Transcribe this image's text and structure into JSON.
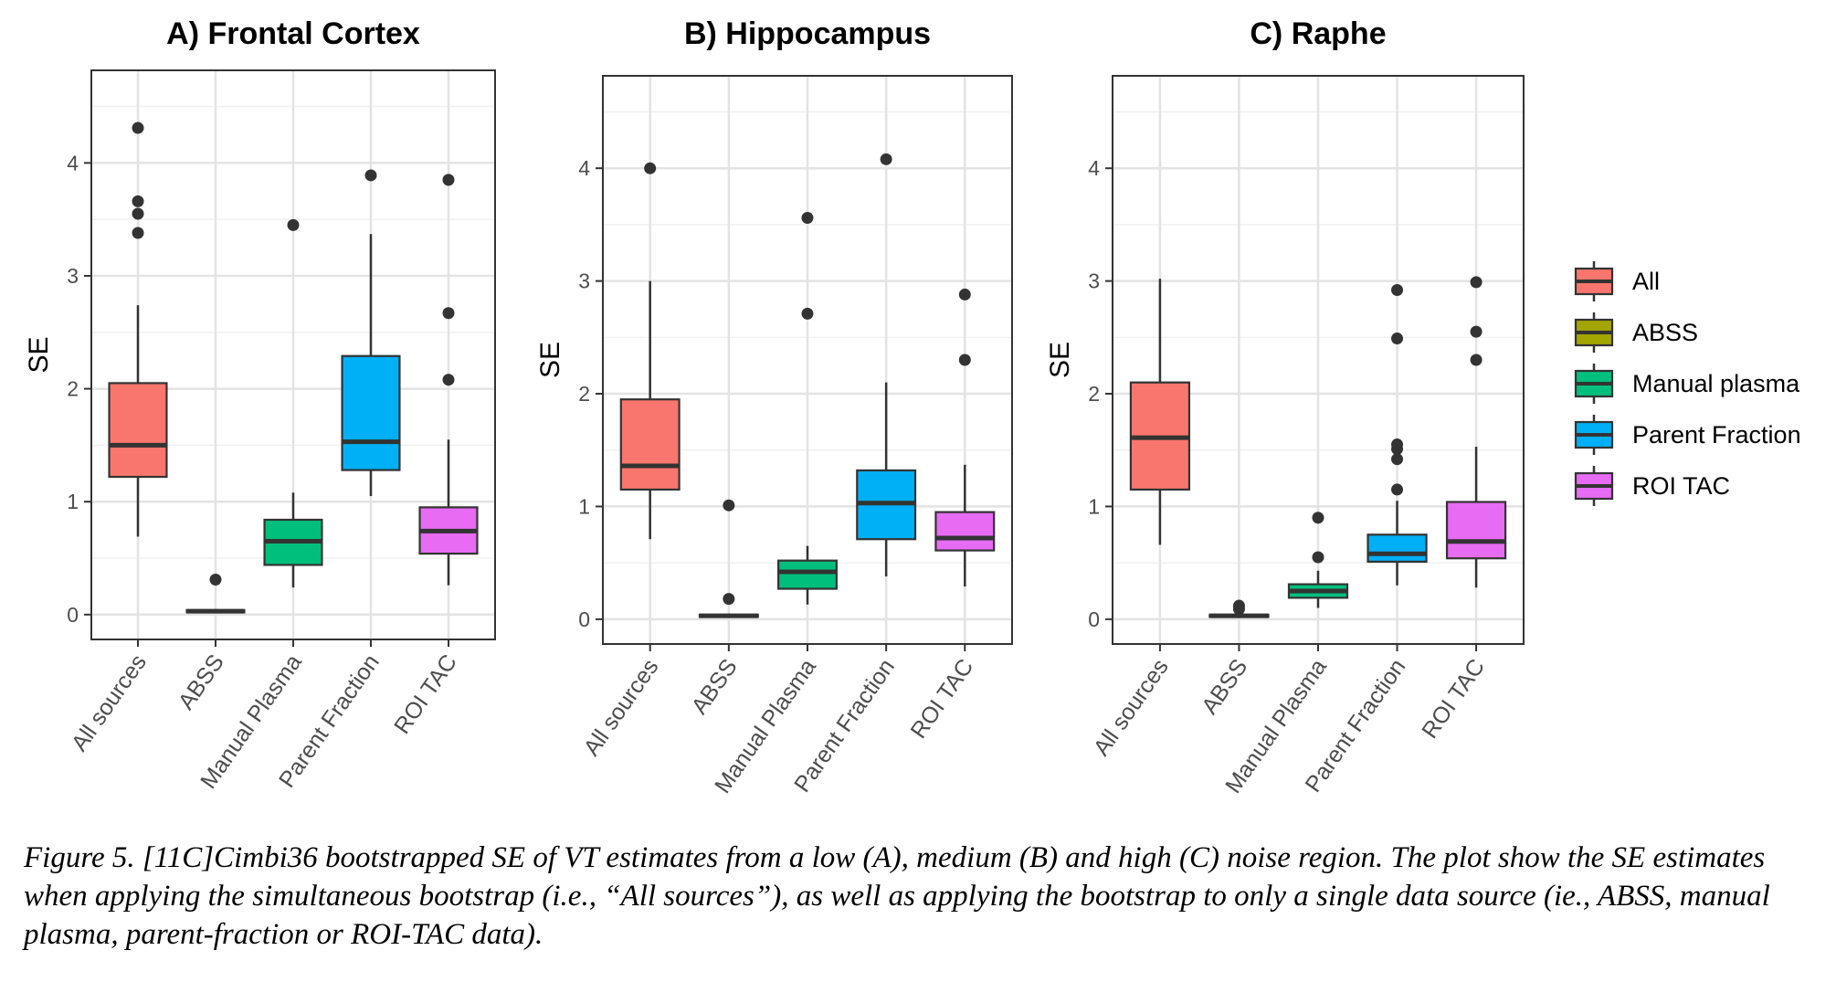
{
  "chart_data": [
    {
      "type": "boxplot",
      "title": "A) Frontal Cortex",
      "xlabel": "",
      "ylabel": "SE",
      "ylim": [
        -0.22,
        4.82
      ],
      "yticks": [
        0,
        1,
        2,
        3,
        4
      ],
      "ytick_labels": [
        "0",
        "1",
        "2",
        "3",
        "4"
      ],
      "categories": [
        "All sources",
        "ABSS",
        "Manual Plasma",
        "Parent Fraction",
        "ROI TAC"
      ],
      "grid": true,
      "boxes": [
        {
          "group": "All",
          "min": 0.69,
          "q1": 1.22,
          "median": 1.5,
          "q3": 2.05,
          "max": 2.74,
          "outliers": [
            3.38,
            3.55,
            3.66,
            4.31
          ]
        },
        {
          "group": "ABSS",
          "min": 0.01,
          "q1": 0.02,
          "median": 0.03,
          "q3": 0.04,
          "max": 0.05,
          "outliers": [
            0.31
          ]
        },
        {
          "group": "Manual plasma",
          "min": 0.24,
          "q1": 0.44,
          "median": 0.65,
          "q3": 0.84,
          "max": 1.08,
          "outliers": [
            3.45
          ]
        },
        {
          "group": "Parent Fraction",
          "min": 1.05,
          "q1": 1.28,
          "median": 1.53,
          "q3": 2.29,
          "max": 3.37,
          "outliers": [
            3.89
          ]
        },
        {
          "group": "ROI TAC",
          "min": 0.26,
          "q1": 0.54,
          "median": 0.74,
          "q3": 0.95,
          "max": 1.55,
          "outliers": [
            2.08,
            2.67,
            3.85
          ]
        }
      ]
    },
    {
      "type": "boxplot",
      "title": "B) Hippocampus",
      "xlabel": "",
      "ylabel": "SE",
      "ylim": [
        -0.22,
        4.82
      ],
      "yticks": [
        0,
        1,
        2,
        3,
        4
      ],
      "ytick_labels": [
        "0",
        "1",
        "2",
        "3",
        "4"
      ],
      "categories": [
        "All sources",
        "ABSS",
        "Manual Plasma",
        "Parent Fraction",
        "ROI TAC"
      ],
      "grid": true,
      "boxes": [
        {
          "group": "All",
          "min": 0.71,
          "q1": 1.15,
          "median": 1.36,
          "q3": 1.95,
          "max": 3.0,
          "outliers": [
            4.0
          ]
        },
        {
          "group": "ABSS",
          "min": 0.01,
          "q1": 0.02,
          "median": 0.03,
          "q3": 0.04,
          "max": 0.05,
          "outliers": [
            0.18,
            1.01
          ]
        },
        {
          "group": "Manual plasma",
          "min": 0.13,
          "q1": 0.27,
          "median": 0.42,
          "q3": 0.52,
          "max": 0.65,
          "outliers": [
            2.71,
            3.56
          ]
        },
        {
          "group": "Parent Fraction",
          "min": 0.38,
          "q1": 0.71,
          "median": 1.03,
          "q3": 1.32,
          "max": 2.1,
          "outliers": [
            4.08
          ]
        },
        {
          "group": "ROI TAC",
          "min": 0.29,
          "q1": 0.61,
          "median": 0.72,
          "q3": 0.95,
          "max": 1.37,
          "outliers": [
            2.3,
            2.88
          ]
        }
      ]
    },
    {
      "type": "boxplot",
      "title": "C) Raphe",
      "xlabel": "",
      "ylabel": "SE",
      "ylim": [
        -0.22,
        4.82
      ],
      "yticks": [
        0,
        1,
        2,
        3,
        4
      ],
      "ytick_labels": [
        "0",
        "1",
        "2",
        "3",
        "4"
      ],
      "categories": [
        "All sources",
        "ABSS",
        "Manual Plasma",
        "Parent Fraction",
        "ROI TAC"
      ],
      "grid": true,
      "boxes": [
        {
          "group": "All",
          "min": 0.66,
          "q1": 1.15,
          "median": 1.61,
          "q3": 2.1,
          "max": 3.02,
          "outliers": []
        },
        {
          "group": "ABSS",
          "min": 0.01,
          "q1": 0.02,
          "median": 0.03,
          "q3": 0.04,
          "max": 0.06,
          "outliers": [
            0.09,
            0.12
          ]
        },
        {
          "group": "Manual plasma",
          "min": 0.1,
          "q1": 0.19,
          "median": 0.25,
          "q3": 0.31,
          "max": 0.43,
          "outliers": [
            0.55,
            0.9
          ]
        },
        {
          "group": "Parent Fraction",
          "min": 0.3,
          "q1": 0.51,
          "median": 0.58,
          "q3": 0.75,
          "max": 1.05,
          "outliers": [
            1.15,
            1.42,
            1.51,
            1.55,
            2.49,
            2.92
          ]
        },
        {
          "group": "ROI TAC",
          "min": 0.28,
          "q1": 0.54,
          "median": 0.69,
          "q3": 1.04,
          "max": 1.53,
          "outliers": [
            2.3,
            2.55,
            2.99
          ]
        }
      ]
    }
  ],
  "legend": {
    "placement": "right",
    "entries": [
      {
        "label": "All",
        "color": "#F8766D"
      },
      {
        "label": "ABSS",
        "color": "#A3A500"
      },
      {
        "label": "Manual plasma",
        "color": "#00BF7D"
      },
      {
        "label": "Parent Fraction",
        "color": "#00B0F6"
      },
      {
        "label": "ROI TAC",
        "color": "#E76BF3"
      }
    ]
  },
  "caption": "Figure 5. [11C]Cimbi36 bootstrapped SE of VT estimates from a low (A), medium (B) and high (C) noise region.  The plot show the SE estimates when applying the simultaneous bootstrap (i.e., “All sources”), as well as applying the bootstrap to only a single data source (ie., ABSS, manual plasma, parent-fraction or ROI-TAC data)."
}
